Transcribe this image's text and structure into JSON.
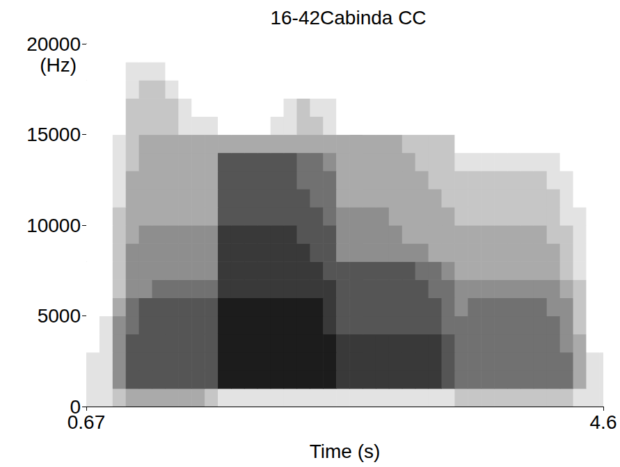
{
  "chart_data": {
    "type": "spectrogram",
    "title": "16-42Cabinda CC",
    "x_label": "Time (s)",
    "y_label": "(Hz)",
    "xlim": [
      0.67,
      4.6
    ],
    "xticks": [
      0.67,
      4.6
    ],
    "ylim": [
      0,
      20000
    ],
    "yticks": [
      0,
      5000,
      10000,
      15000,
      20000
    ],
    "grid": false,
    "color": "#000000",
    "intensity_range": [
      0,
      9
    ],
    "time_bins": [
      0.67,
      0.77,
      0.87,
      0.97,
      1.07,
      1.17,
      1.27,
      1.37,
      1.47,
      1.57,
      1.67,
      1.77,
      1.87,
      1.97,
      2.07,
      2.17,
      2.27,
      2.37,
      2.47,
      2.57,
      2.67,
      2.77,
      2.87,
      2.97,
      3.07,
      3.17,
      3.27,
      3.37,
      3.47,
      3.57,
      3.67,
      3.77,
      3.87,
      3.97,
      4.07,
      4.17,
      4.27,
      4.37,
      4.47,
      4.57,
      4.6
    ],
    "frequency_bins": [
      0,
      1000,
      2000,
      3000,
      4000,
      5000,
      6000,
      7000,
      8000,
      9000,
      10000,
      11000,
      12000,
      13000,
      14000,
      15000,
      16000,
      17000,
      18000,
      19000,
      20000
    ],
    "cells": [
      [
        1,
        1,
        2,
        3,
        3,
        3,
        3,
        3,
        3,
        2,
        1,
        1,
        1,
        1,
        1,
        1,
        1,
        1,
        1,
        1,
        1,
        1,
        1,
        1,
        1,
        1,
        1,
        1,
        2,
        2,
        2,
        2,
        2,
        2,
        2,
        2,
        2,
        1,
        1,
        1
      ],
      [
        1,
        1,
        4,
        6,
        6,
        6,
        6,
        6,
        6,
        6,
        8,
        8,
        8,
        8,
        8,
        8,
        8,
        8,
        8,
        7,
        7,
        7,
        7,
        7,
        7,
        7,
        7,
        6,
        5,
        5,
        5,
        5,
        5,
        5,
        5,
        5,
        5,
        3,
        1,
        1
      ],
      [
        1,
        1,
        4,
        6,
        6,
        6,
        6,
        6,
        6,
        6,
        8,
        8,
        8,
        8,
        8,
        8,
        8,
        8,
        8,
        7,
        7,
        7,
        7,
        7,
        7,
        7,
        7,
        6,
        5,
        5,
        5,
        5,
        5,
        5,
        5,
        5,
        5,
        3,
        1,
        1
      ],
      [
        0,
        1,
        4,
        6,
        6,
        6,
        6,
        6,
        6,
        6,
        8,
        8,
        8,
        8,
        8,
        8,
        8,
        8,
        8,
        7,
        7,
        7,
        7,
        7,
        7,
        7,
        7,
        6,
        5,
        5,
        5,
        5,
        5,
        5,
        5,
        5,
        4,
        3,
        0,
        0
      ],
      [
        0,
        1,
        4,
        5,
        6,
        6,
        6,
        6,
        6,
        6,
        8,
        8,
        8,
        8,
        8,
        8,
        8,
        8,
        7,
        6,
        6,
        6,
        6,
        6,
        6,
        6,
        6,
        5,
        5,
        5,
        5,
        5,
        5,
        5,
        5,
        5,
        4,
        2,
        0,
        0
      ],
      [
        0,
        0,
        3,
        5,
        6,
        6,
        6,
        6,
        6,
        6,
        8,
        8,
        8,
        8,
        8,
        8,
        8,
        8,
        7,
        6,
        6,
        6,
        6,
        6,
        6,
        6,
        6,
        5,
        4,
        5,
        5,
        5,
        5,
        5,
        5,
        4,
        4,
        2,
        0,
        0
      ],
      [
        0,
        0,
        2,
        4,
        4,
        5,
        5,
        5,
        5,
        5,
        7,
        7,
        7,
        7,
        7,
        7,
        7,
        7,
        7,
        6,
        6,
        6,
        6,
        6,
        6,
        6,
        5,
        5,
        4,
        4,
        4,
        4,
        4,
        4,
        4,
        4,
        3,
        2,
        0,
        0
      ],
      [
        0,
        0,
        2,
        4,
        4,
        4,
        4,
        4,
        4,
        4,
        7,
        7,
        7,
        7,
        7,
        7,
        7,
        7,
        6,
        6,
        6,
        6,
        6,
        6,
        6,
        5,
        5,
        4,
        3,
        3,
        3,
        3,
        3,
        3,
        3,
        3,
        2,
        1,
        0,
        0
      ],
      [
        0,
        0,
        2,
        4,
        4,
        4,
        4,
        4,
        4,
        4,
        7,
        7,
        7,
        7,
        7,
        7,
        7,
        6,
        6,
        4,
        4,
        4,
        4,
        4,
        4,
        4,
        3,
        3,
        3,
        3,
        3,
        3,
        3,
        3,
        3,
        3,
        2,
        1,
        0,
        0
      ],
      [
        0,
        0,
        2,
        3,
        4,
        4,
        4,
        4,
        4,
        4,
        7,
        7,
        7,
        7,
        7,
        7,
        6,
        6,
        6,
        4,
        4,
        4,
        4,
        4,
        3,
        3,
        3,
        3,
        3,
        3,
        3,
        3,
        3,
        3,
        3,
        2,
        2,
        1,
        0,
        0
      ],
      [
        0,
        0,
        2,
        3,
        3,
        3,
        3,
        3,
        3,
        3,
        6,
        6,
        6,
        6,
        6,
        6,
        6,
        6,
        5,
        4,
        4,
        4,
        4,
        3,
        3,
        3,
        3,
        3,
        2,
        2,
        2,
        2,
        2,
        2,
        2,
        2,
        1,
        1,
        0,
        0
      ],
      [
        0,
        0,
        1,
        3,
        3,
        3,
        3,
        3,
        3,
        3,
        6,
        6,
        6,
        6,
        6,
        6,
        6,
        5,
        5,
        3,
        3,
        3,
        3,
        3,
        3,
        3,
        3,
        2,
        2,
        2,
        2,
        2,
        2,
        2,
        2,
        2,
        1,
        0,
        0,
        0
      ],
      [
        0,
        0,
        1,
        3,
        3,
        3,
        3,
        3,
        3,
        3,
        6,
        6,
        6,
        6,
        6,
        6,
        5,
        5,
        5,
        3,
        3,
        3,
        3,
        3,
        3,
        3,
        2,
        2,
        2,
        2,
        2,
        2,
        2,
        2,
        2,
        1,
        1,
        0,
        0,
        0
      ],
      [
        0,
        0,
        1,
        2,
        3,
        3,
        3,
        3,
        3,
        3,
        6,
        6,
        6,
        6,
        6,
        6,
        5,
        5,
        4,
        3,
        3,
        3,
        3,
        3,
        3,
        2,
        2,
        2,
        1,
        1,
        1,
        1,
        1,
        1,
        1,
        1,
        0,
        0,
        0,
        0
      ],
      [
        0,
        0,
        1,
        2,
        3,
        3,
        3,
        3,
        3,
        3,
        3,
        3,
        3,
        3,
        3,
        3,
        3,
        3,
        3,
        3,
        3,
        3,
        3,
        3,
        2,
        2,
        2,
        2,
        0,
        0,
        0,
        0,
        0,
        0,
        0,
        0,
        0,
        0,
        0,
        0
      ],
      [
        0,
        0,
        0,
        2,
        2,
        2,
        2,
        1,
        1,
        1,
        0,
        0,
        0,
        0,
        1,
        1,
        2,
        2,
        1,
        0,
        0,
        0,
        0,
        0,
        0,
        0,
        0,
        0,
        0,
        0,
        0,
        0,
        0,
        0,
        0,
        0,
        0,
        0,
        0,
        0
      ],
      [
        0,
        0,
        0,
        2,
        2,
        2,
        2,
        1,
        0,
        0,
        0,
        0,
        0,
        0,
        0,
        1,
        2,
        1,
        1,
        0,
        0,
        0,
        0,
        0,
        0,
        0,
        0,
        0,
        0,
        0,
        0,
        0,
        0,
        0,
        0,
        0,
        0,
        0,
        0,
        0
      ],
      [
        0,
        0,
        0,
        1,
        2,
        2,
        1,
        0,
        0,
        0,
        0,
        0,
        0,
        0,
        0,
        0,
        0,
        0,
        0,
        0,
        0,
        0,
        0,
        0,
        0,
        0,
        0,
        0,
        0,
        0,
        0,
        0,
        0,
        0,
        0,
        0,
        0,
        0,
        0,
        0
      ],
      [
        0,
        0,
        0,
        1,
        1,
        1,
        0,
        0,
        0,
        0,
        0,
        0,
        0,
        0,
        0,
        0,
        0,
        0,
        0,
        0,
        0,
        0,
        0,
        0,
        0,
        0,
        0,
        0,
        0,
        0,
        0,
        0,
        0,
        0,
        0,
        0,
        0,
        0,
        0,
        0
      ],
      [
        0,
        0,
        0,
        0,
        0,
        0,
        0,
        0,
        0,
        0,
        0,
        0,
        0,
        0,
        0,
        0,
        0,
        0,
        0,
        0,
        0,
        0,
        0,
        0,
        0,
        0,
        0,
        0,
        0,
        0,
        0,
        0,
        0,
        0,
        0,
        0,
        0,
        0,
        0,
        0
      ]
    ]
  }
}
